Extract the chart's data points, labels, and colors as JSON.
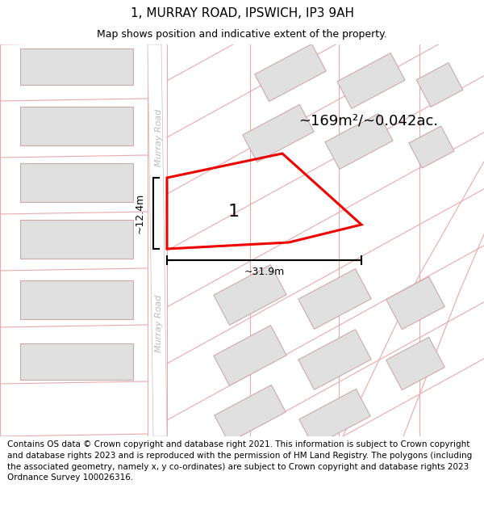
{
  "title": "1, MURRAY ROAD, IPSWICH, IP3 9AH",
  "subtitle": "Map shows position and indicative extent of the property.",
  "footer": "Contains OS data © Crown copyright and database right 2021. This information is subject to Crown copyright and database rights 2023 and is reproduced with the permission of HM Land Registry. The polygons (including the associated geometry, namely x, y co-ordinates) are subject to Crown copyright and database rights 2023 Ordnance Survey 100026316.",
  "area_label": "~169m²/~0.042ac.",
  "width_label": "~31.9m",
  "height_label": "~12.4m",
  "property_number": "1",
  "map_bg": "#f7f3f3",
  "road_fill": "#ffffff",
  "parcel_line_color": "#e8aaaa",
  "building_color": "#e0e0e0",
  "building_outline": "#ccaaaa",
  "highlight_color": "#ee0000",
  "road_label_color": "#bbbbbb",
  "title_fontsize": 11,
  "subtitle_fontsize": 9,
  "footer_fontsize": 7.5
}
